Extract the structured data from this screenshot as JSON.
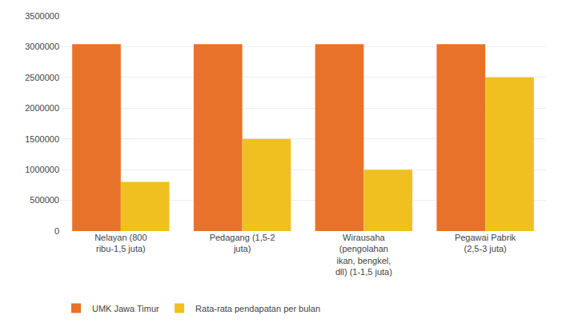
{
  "chart_data": {
    "type": "bar",
    "categories": [
      "Nelayan (800\nribu-1,5 juta)",
      "Pedagang (1,5-2\njuta)",
      "Wirausaha\n(pengolahan\nikan, bengkel,\ndll) (1-1,5 juta)",
      "Pegawai Pabrik\n(2,5-3 juta)"
    ],
    "series": [
      {
        "name": "UMK Jawa Timur",
        "color": "#E8722A",
        "values": [
          3040000,
          3040000,
          3040000,
          3040000
        ]
      },
      {
        "name": "Rata-rata pendapatan per bulan",
        "color": "#F0C020",
        "values": [
          800000,
          1500000,
          1000000,
          2500000
        ]
      }
    ],
    "ylim": [
      0,
      3500000
    ],
    "yticks": [
      0,
      500000,
      1000000,
      1500000,
      2000000,
      2500000,
      3000000,
      3500000
    ],
    "grid": true,
    "legend": "bottom"
  }
}
